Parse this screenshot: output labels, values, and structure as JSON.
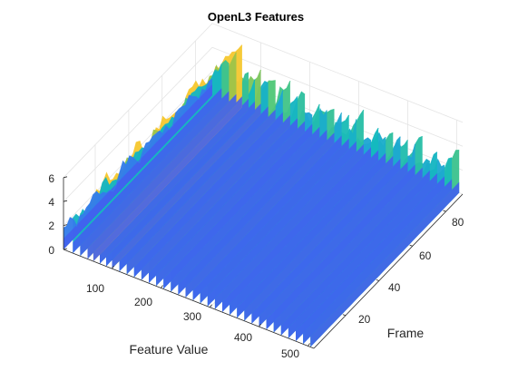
{
  "chart_data": {
    "type": "surface",
    "title": "OpenL3 Features",
    "xlabel": "Feature Value",
    "ylabel": "Frame",
    "zlabel": "",
    "x_ticks": [
      "100",
      "200",
      "300",
      "400",
      "500"
    ],
    "y_ticks": [
      "20",
      "40",
      "60",
      "80"
    ],
    "z_ticks": [
      "0",
      "2",
      "4",
      "6"
    ],
    "xlim": [
      1,
      512
    ],
    "ylim": [
      1,
      90
    ],
    "zlim": [
      0,
      6
    ],
    "colormap": "parula",
    "grid": true,
    "rows": [
      {
        "x": 1,
        "z": 1.4
      },
      {
        "x": 20,
        "z": 2.6
      },
      {
        "x": 35,
        "z": 3.3
      },
      {
        "x": 50,
        "z": 4.3
      },
      {
        "x": 62,
        "z": 5.4
      },
      {
        "x": 75,
        "z": 3.2
      },
      {
        "x": 88,
        "z": 2.7
      },
      {
        "x": 100,
        "z": 4.0
      },
      {
        "x": 115,
        "z": 2.5
      },
      {
        "x": 130,
        "z": 3.6
      },
      {
        "x": 145,
        "z": 2.3
      },
      {
        "x": 160,
        "z": 3.4
      },
      {
        "x": 175,
        "z": 2.6
      },
      {
        "x": 190,
        "z": 3.1
      },
      {
        "x": 205,
        "z": 2.2
      },
      {
        "x": 220,
        "z": 2.9
      },
      {
        "x": 235,
        "z": 2.4
      },
      {
        "x": 250,
        "z": 3.2
      },
      {
        "x": 265,
        "z": 2.3
      },
      {
        "x": 280,
        "z": 2.8
      },
      {
        "x": 295,
        "z": 2.5
      },
      {
        "x": 310,
        "z": 3.0
      },
      {
        "x": 325,
        "z": 2.2
      },
      {
        "x": 340,
        "z": 2.7
      },
      {
        "x": 355,
        "z": 2.4
      },
      {
        "x": 370,
        "z": 3.1
      },
      {
        "x": 385,
        "z": 2.3
      },
      {
        "x": 400,
        "z": 2.9
      },
      {
        "x": 415,
        "z": 2.2
      },
      {
        "x": 430,
        "z": 3.0
      },
      {
        "x": 445,
        "z": 2.4
      },
      {
        "x": 460,
        "z": 2.6
      },
      {
        "x": 475,
        "z": 2.3
      },
      {
        "x": 490,
        "z": 2.8
      },
      {
        "x": 505,
        "z": 3.3
      }
    ]
  }
}
